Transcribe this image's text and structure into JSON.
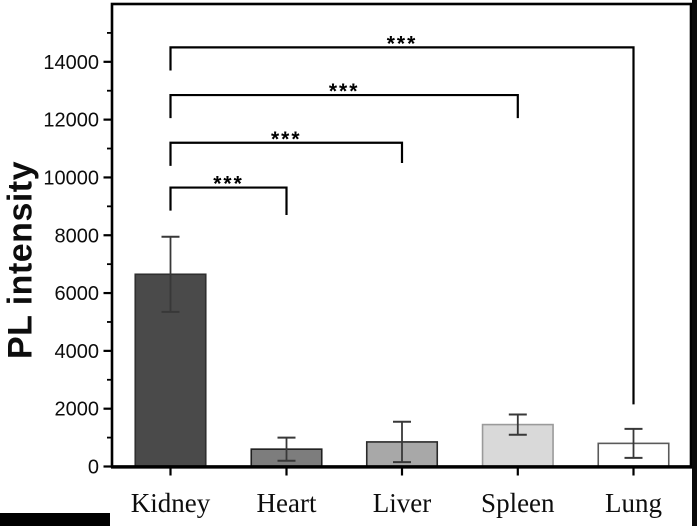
{
  "figure": {
    "ylabel": "PL intensity"
  },
  "chart_data": {
    "type": "bar",
    "title": "",
    "xlabel": "",
    "ylabel": "PL intensity",
    "categories": [
      "Kidney",
      "Heart",
      "Liver",
      "Spleen",
      "Lung"
    ],
    "values": [
      6650,
      600,
      850,
      1450,
      800
    ],
    "error_bars": [
      1300,
      400,
      700,
      350,
      500
    ],
    "bar_colors": [
      "#4a4a4a",
      "#7d7d7d",
      "#a8a8a8",
      "#d9d9d9",
      "#ffffff"
    ],
    "bar_edge_colors": [
      "#2f2f2f",
      "#1f1f1f",
      "#2a2a2a",
      "#9a9a9a",
      "#5a5a5a"
    ],
    "ylim": [
      0,
      16000
    ],
    "yticks": [
      0,
      2000,
      4000,
      6000,
      8000,
      10000,
      12000,
      14000
    ],
    "minor_ytick_step": 1000,
    "grid": false,
    "significance_brackets": [
      {
        "from": "Kidney",
        "to": "Heart",
        "label": "***",
        "top": 9650,
        "left_drop_to": 8850,
        "right_drop_to": 8700
      },
      {
        "from": "Kidney",
        "to": "Liver",
        "label": "***",
        "top": 11200,
        "left_drop_to": 10400,
        "right_drop_to": 10500
      },
      {
        "from": "Kidney",
        "to": "Spleen",
        "label": "***",
        "top": 12850,
        "left_drop_to": 12050,
        "right_drop_to": 12050
      },
      {
        "from": "Kidney",
        "to": "Lung",
        "label": "***",
        "top": 14500,
        "left_drop_to": 13700,
        "right_drop_to": 2150
      }
    ]
  }
}
